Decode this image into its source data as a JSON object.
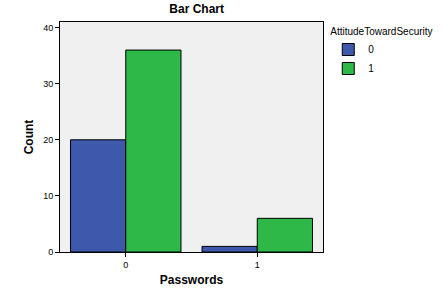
{
  "chart_data": {
    "type": "bar",
    "title": "Bar Chart",
    "x_label": "Passwords",
    "y_label": "Count",
    "legend_title": "AttitudeTowardSecurity",
    "categories": [
      "0",
      "1"
    ],
    "series": [
      {
        "name": "0",
        "color": "#3e58ac",
        "values": [
          20,
          1
        ]
      },
      {
        "name": "1",
        "color": "#2eb848",
        "values": [
          36,
          6
        ]
      }
    ],
    "ylim": [
      0,
      41
    ],
    "yticks": [
      0,
      10,
      20,
      30,
      40
    ],
    "grid": false,
    "legend": "right"
  }
}
